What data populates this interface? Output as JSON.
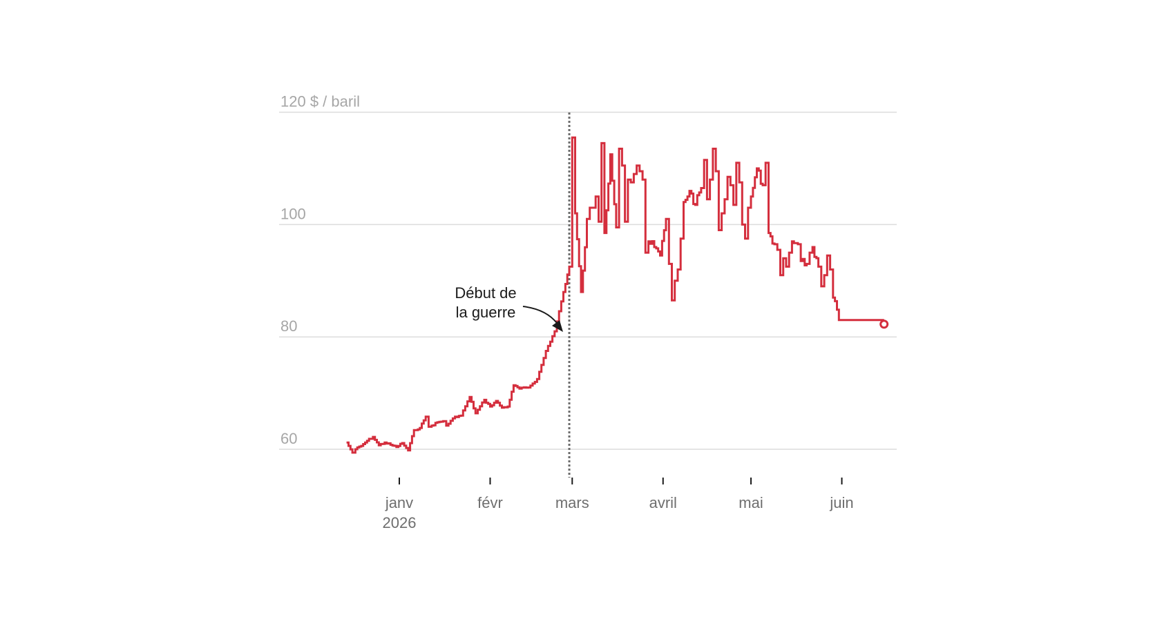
{
  "chart_data": {
    "type": "line",
    "title": "",
    "xlabel": "",
    "ylabel": "",
    "y_unit_label": "$ / baril",
    "y_ticks": [
      60,
      80,
      100,
      120
    ],
    "y_tick_labels": [
      "60",
      "80",
      "100",
      "120 $ / baril"
    ],
    "ylim": [
      55,
      122
    ],
    "x_ticks": [
      {
        "date": "2026-01-01",
        "label": "janv",
        "sublabel": "2026"
      },
      {
        "date": "2026-02-01",
        "label": "févr",
        "sublabel": ""
      },
      {
        "date": "2026-03-01",
        "label": "mars",
        "sublabel": ""
      },
      {
        "date": "2026-04-01",
        "label": "avril",
        "sublabel": ""
      },
      {
        "date": "2026-05-01",
        "label": "mai",
        "sublabel": ""
      },
      {
        "date": "2026-06-01",
        "label": "juin",
        "sublabel": ""
      }
    ],
    "grid": true,
    "line_color": "#d42e3d",
    "series": [
      {
        "x": [
          "2025-12-14",
          "2025-12-16",
          "2025-12-17",
          "2025-12-19",
          "2025-12-21",
          "2025-12-23",
          "2025-12-25",
          "2025-12-27",
          "2025-12-29",
          "2025-12-31",
          "2026-01-02",
          "2026-01-04",
          "2026-01-06",
          "2026-01-08",
          "2026-01-10",
          "2026-01-11",
          "2026-01-12",
          "2026-01-14",
          "2026-01-16",
          "2026-01-17",
          "2026-01-20",
          "2026-01-22",
          "2026-01-25",
          "2026-01-27",
          "2026-01-30",
          "2026-02-01",
          "2026-02-03",
          "2026-02-05",
          "2026-02-07",
          "2026-02-09",
          "2026-02-11",
          "2026-02-14",
          "2026-02-17",
          "2026-02-20",
          "2026-02-23",
          "2026-02-26",
          "2026-02-28",
          "2026-03-01",
          "2026-03-02",
          "2026-03-04",
          "2026-03-06",
          "2026-03-07",
          "2026-03-08",
          "2026-03-09",
          "2026-03-10",
          "2026-03-11",
          "2026-03-12",
          "2026-03-14",
          "2026-03-16",
          "2026-03-17",
          "2026-03-18",
          "2026-03-19",
          "2026-03-20",
          "2026-03-21",
          "2026-03-22",
          "2026-03-23",
          "2026-03-24",
          "2026-03-25",
          "2026-03-26",
          "2026-03-27",
          "2026-03-29",
          "2026-03-31",
          "2026-04-02",
          "2026-04-03",
          "2026-04-04",
          "2026-04-05",
          "2026-04-06",
          "2026-04-07",
          "2026-04-08",
          "2026-04-10",
          "2026-04-12",
          "2026-04-14",
          "2026-04-15",
          "2026-04-16",
          "2026-04-17",
          "2026-04-18",
          "2026-04-19",
          "2026-04-20",
          "2026-04-21",
          "2026-04-22",
          "2026-04-23",
          "2026-04-24",
          "2026-04-25",
          "2026-04-26",
          "2026-04-27",
          "2026-04-28",
          "2026-04-29",
          "2026-04-30",
          "2026-05-01",
          "2026-05-03",
          "2026-05-05",
          "2026-05-06",
          "2026-05-07",
          "2026-05-09",
          "2026-05-10",
          "2026-05-11",
          "2026-05-12",
          "2026-05-13",
          "2026-05-14",
          "2026-05-15",
          "2026-05-17",
          "2026-05-18",
          "2026-05-20",
          "2026-05-21",
          "2026-05-22",
          "2026-05-24",
          "2026-05-25",
          "2026-05-26",
          "2026-05-27",
          "2026-05-28",
          "2026-05-29",
          "2026-05-31",
          "2026-06-01",
          "2026-06-02",
          "2026-06-03",
          "2026-06-04",
          "2026-06-05",
          "2026-06-06",
          "2026-06-07",
          "2026-06-08",
          "2026-06-09",
          "2026-06-10",
          "2026-06-11",
          "2026-06-12",
          "2026-06-13",
          "2026-06-14"
        ],
        "y": [
          61.2,
          59.4,
          60.0,
          60.6,
          61.5,
          62.2,
          60.7,
          61.2,
          60.8,
          60.4,
          61.1,
          59.8,
          63.4,
          63.8,
          65.8,
          64.0,
          64.2,
          64.8,
          65.0,
          64.2,
          65.8,
          66.0,
          69.3,
          66.4,
          68.8,
          67.6,
          68.6,
          67.4,
          67.6,
          71.4,
          70.8,
          71.0,
          72.5,
          77.5,
          81.0,
          88.0,
          92.5,
          115.5,
          102.0,
          88.0,
          101.0,
          103.0,
          103.0,
          105.0,
          100.5,
          114.5,
          98.5,
          112.5,
          99.5,
          113.5,
          110.5,
          100.5,
          108.0,
          107.5,
          109.0,
          110.5,
          109.5,
          108.0,
          95.0,
          97.0,
          96.0,
          94.5,
          101.0,
          93.0,
          86.5,
          90.0,
          92.0,
          97.5,
          104.0,
          106.0,
          103.5,
          106.5,
          111.5,
          104.5,
          108.0,
          113.5,
          109.5,
          99.0,
          102.0,
          104.5,
          108.5,
          107.0,
          103.5,
          111.0,
          107.5,
          100.0,
          97.5,
          103.0,
          105.0,
          110.0,
          107.0,
          111.0,
          98.5,
          96.5,
          95.5,
          91.0,
          94.0,
          92.5,
          95.0,
          97.0,
          96.5,
          93.5,
          93.0,
          95.0,
          96.0,
          92.5,
          89.0,
          91.0,
          94.5,
          92.0,
          87.0,
          83.0,
          83.0,
          83.0,
          83.0,
          83.0,
          83.0,
          83.0,
          83.0,
          83.0,
          83.0,
          83.0,
          83.0,
          83.0,
          83.0,
          83.0
        ]
      }
    ],
    "annotations": [
      {
        "date": "2026-02-28",
        "line1": "Début de",
        "line2": "la guerre"
      }
    ],
    "end_marker_value": 83.0
  }
}
